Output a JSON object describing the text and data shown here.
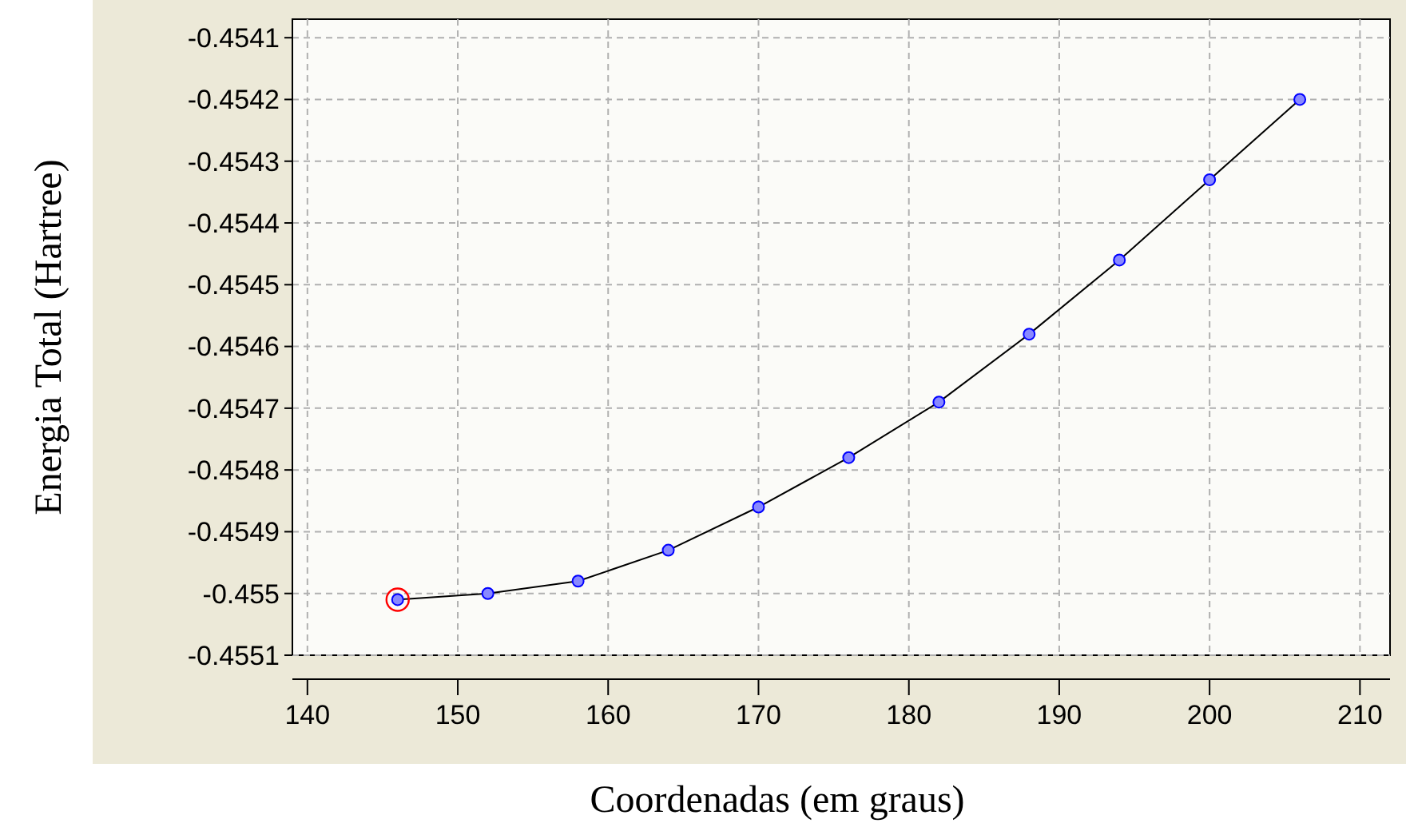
{
  "chart_data": {
    "type": "line",
    "xlabel": "Coordenadas (em graus)",
    "ylabel": "Energia Total (Hartree)",
    "xlim": [
      139,
      212
    ],
    "ylim": [
      -0.4551,
      -0.45407
    ],
    "xticks": [
      140,
      150,
      160,
      170,
      180,
      190,
      200,
      210
    ],
    "yticks": [
      -0.4551,
      -0.455,
      -0.4549,
      -0.4548,
      -0.4547,
      -0.4546,
      -0.4545,
      -0.4544,
      -0.4543,
      -0.4542,
      -0.4541
    ],
    "grid": true,
    "marker": "circle",
    "line_style": "solid",
    "series": [
      {
        "color": "#0000ff",
        "x": [
          146,
          152,
          158,
          164,
          170,
          176,
          182,
          188,
          194,
          200,
          206
        ],
        "values": [
          -0.45501,
          -0.455,
          -0.45498,
          -0.45493,
          -0.45486,
          -0.45478,
          -0.45469,
          -0.45458,
          -0.45446,
          -0.45433,
          -0.4542
        ]
      },
      {
        "type": "scatter",
        "color": "#ff0000",
        "x": [
          146
        ],
        "values": [
          -0.45501
        ]
      }
    ]
  }
}
